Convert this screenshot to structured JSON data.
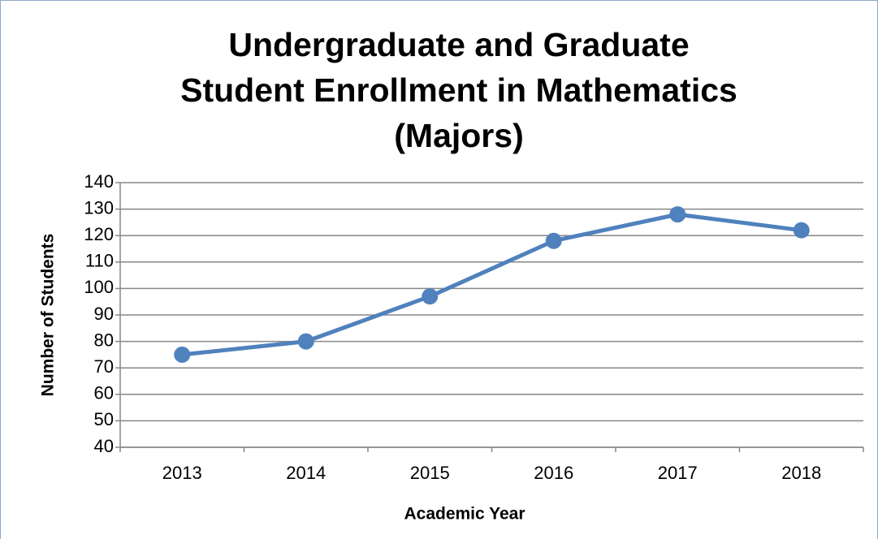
{
  "chart_data": {
    "type": "line",
    "title": [
      "Undergraduate and Graduate",
      "Student Enrollment in Mathematics",
      "(Majors)"
    ],
    "x_label": "Academic Year",
    "y_label": "Number of Students",
    "categories": [
      "2013",
      "2014",
      "2015",
      "2016",
      "2017",
      "2018"
    ],
    "values": [
      75,
      80,
      97,
      118,
      128,
      122
    ],
    "color": "#4f81bd",
    "ylim": [
      40,
      140
    ],
    "yticks": [
      40,
      50,
      60,
      70,
      80,
      90,
      100,
      110,
      120,
      130,
      140
    ],
    "grid": true
  }
}
